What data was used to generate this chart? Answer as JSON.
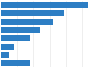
{
  "values": [
    27,
    19.5,
    16.0,
    12.0,
    9.0,
    4.0,
    2.5,
    9.0
  ],
  "bar_color": "#2d7ec4",
  "background_color": "#ffffff",
  "grid_color": "#e8e8e8",
  "figsize": [
    1.0,
    0.71
  ],
  "dpi": 100,
  "xlim": [
    0,
    30
  ]
}
